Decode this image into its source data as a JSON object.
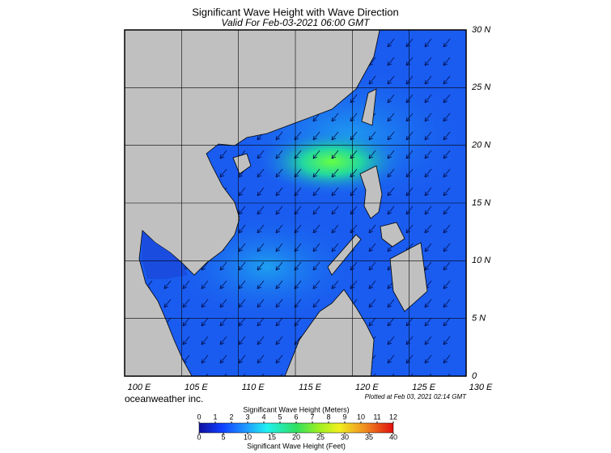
{
  "header": {
    "title": "Significant Wave Height with Wave Direction",
    "subtitle": "Valid For Feb-03-2021 06:00 GMT"
  },
  "map": {
    "xlim": [
      100,
      130
    ],
    "ylim": [
      0,
      30
    ],
    "xticks": [
      {
        "value": 100,
        "label": "100 E"
      },
      {
        "value": 105,
        "label": "105 E"
      },
      {
        "value": 110,
        "label": "110 E"
      },
      {
        "value": 115,
        "label": "115 E"
      },
      {
        "value": 120,
        "label": "120 E"
      },
      {
        "value": 125,
        "label": "125 E"
      },
      {
        "value": 130,
        "label": "130 E"
      }
    ],
    "yticks": [
      0,
      {
        "value": 5,
        "label": "5 N"
      },
      {
        "value": 10,
        "label": "10 N"
      },
      {
        "value": 15,
        "label": "15 N"
      },
      {
        "value": 20,
        "label": "20 N"
      },
      {
        "value": 25,
        "label": "25 N"
      },
      {
        "value": 30,
        "label": "30 N"
      }
    ]
  },
  "footer": {
    "credit": "oceanweather inc.",
    "plotted": "Plotted at Feb 03, 2021 02:14 GMT"
  },
  "colorbar": {
    "meters_label": "Significant Wave Height (Meters)",
    "meters_lim": [
      0,
      12
    ],
    "meters_ticks": [
      0,
      1,
      2,
      3,
      4,
      5,
      6,
      7,
      8,
      9,
      10,
      11,
      12
    ],
    "feet_lim": [
      0,
      40
    ],
    "feet_ticks": [
      0,
      5,
      10,
      15,
      20,
      25,
      30,
      35,
      40
    ],
    "feet_label": "Significant Wave Height (Feet)"
  }
}
